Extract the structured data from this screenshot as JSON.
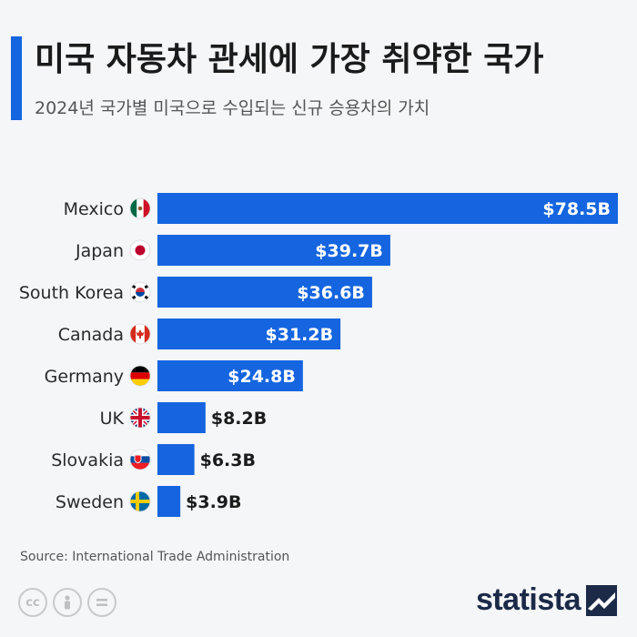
{
  "header": {
    "title": "미국 자동차 관세에 가장 취약한 국가",
    "subtitle": "2024년 국가별 미국으로 수입되는 신규 승용차의 가치"
  },
  "footer": {
    "source": "Source: International Trade Administration",
    "brand": "statista",
    "license_icons": [
      "cc-icon",
      "attribution-icon",
      "no-derivatives-icon"
    ]
  },
  "colors": {
    "bar": "#1565e0",
    "accent": "#1565e0",
    "text": "#1b1b1b"
  },
  "chart_data": {
    "type": "bar",
    "orientation": "horizontal",
    "categories": [
      "Mexico",
      "Japan",
      "South Korea",
      "Canada",
      "Germany",
      "UK",
      "Slovakia",
      "Sweden"
    ],
    "values": [
      78.5,
      39.7,
      36.6,
      31.2,
      24.8,
      8.2,
      6.3,
      3.9
    ],
    "data_labels": [
      "$78.5B",
      "$39.7B",
      "$36.6B",
      "$31.2B",
      "$24.8B",
      "$8.2B",
      "$6.3B",
      "$3.9B"
    ],
    "flags": [
      "mexico-flag-icon",
      "japan-flag-icon",
      "south-korea-flag-icon",
      "canada-flag-icon",
      "germany-flag-icon",
      "uk-flag-icon",
      "slovakia-flag-icon",
      "sweden-flag-icon"
    ],
    "unit": "billion USD",
    "xlim": [
      0,
      78.5
    ],
    "grid": false
  }
}
